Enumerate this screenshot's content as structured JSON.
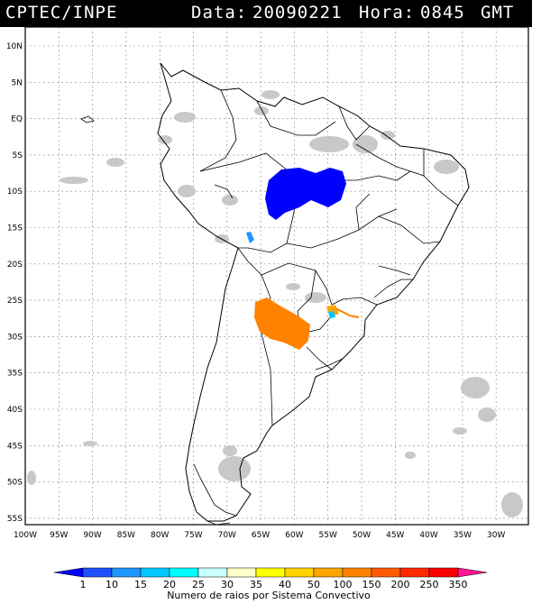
{
  "header": {
    "source": "CPTEC/INPE",
    "date_label": "Data:",
    "date_value": "20090221",
    "hour_label": "Hora:",
    "hour_value": "0845",
    "tz": "GMT"
  },
  "lat_labels": [
    "10N",
    "5N",
    "EQ",
    "5S",
    "10S",
    "15S",
    "20S",
    "25S",
    "30S",
    "35S",
    "40S",
    "45S",
    "50S",
    "55S"
  ],
  "lon_labels": [
    "100W",
    "95W",
    "90W",
    "85W",
    "80W",
    "75W",
    "70W",
    "65W",
    "60W",
    "55W",
    "50W",
    "45W",
    "40W",
    "35W",
    "30W"
  ],
  "legend": {
    "title": "Numero de raios por Sistema Convectivo",
    "values": [
      "1",
      "10",
      "15",
      "20",
      "25",
      "30",
      "35",
      "40",
      "50",
      "100",
      "150",
      "200",
      "250",
      "350"
    ],
    "colors": [
      "#0000ff",
      "#1e50ff",
      "#1e96ff",
      "#00c8ff",
      "#00ffff",
      "#c8ffff",
      "#ffffc8",
      "#ffff00",
      "#ffd200",
      "#ffa500",
      "#ff8200",
      "#ff5a00",
      "#ff2800",
      "#ff0000",
      "#ff1493"
    ]
  }
}
